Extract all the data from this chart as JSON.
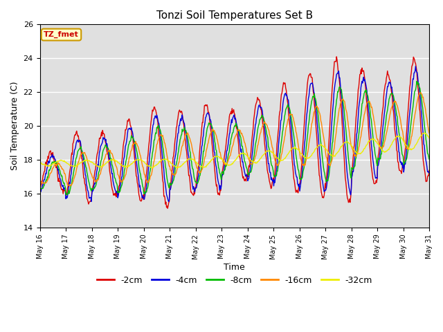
{
  "title": "Tonzi Soil Temperatures Set B",
  "xlabel": "Time",
  "ylabel": "Soil Temperature (C)",
  "ylim": [
    14,
    26
  ],
  "bg_color": "#e0e0e0",
  "legend_label": "TZ_fmet",
  "legend_box_color": "#ffffcc",
  "legend_box_edge": "#cc9900",
  "series_colors": {
    "-2cm": "#dd0000",
    "-4cm": "#0000dd",
    "-8cm": "#00bb00",
    "-16cm": "#ff8800",
    "-32cm": "#eeee00"
  },
  "series_order": [
    "-2cm",
    "-4cm",
    "-8cm",
    "-16cm",
    "-32cm"
  ]
}
